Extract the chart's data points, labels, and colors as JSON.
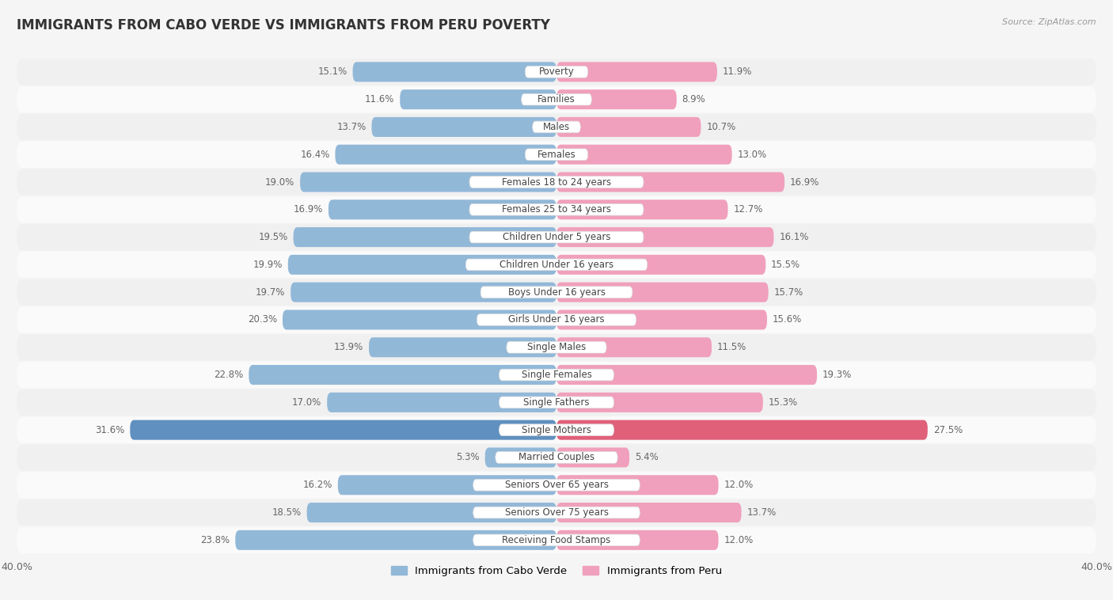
{
  "title": "IMMIGRANTS FROM CABO VERDE VS IMMIGRANTS FROM PERU POVERTY",
  "source": "Source: ZipAtlas.com",
  "categories": [
    "Poverty",
    "Families",
    "Males",
    "Females",
    "Females 18 to 24 years",
    "Females 25 to 34 years",
    "Children Under 5 years",
    "Children Under 16 years",
    "Boys Under 16 years",
    "Girls Under 16 years",
    "Single Males",
    "Single Females",
    "Single Fathers",
    "Single Mothers",
    "Married Couples",
    "Seniors Over 65 years",
    "Seniors Over 75 years",
    "Receiving Food Stamps"
  ],
  "cabo_verde": [
    15.1,
    11.6,
    13.7,
    16.4,
    19.0,
    16.9,
    19.5,
    19.9,
    19.7,
    20.3,
    13.9,
    22.8,
    17.0,
    31.6,
    5.3,
    16.2,
    18.5,
    23.8
  ],
  "peru": [
    11.9,
    8.9,
    10.7,
    13.0,
    16.9,
    12.7,
    16.1,
    15.5,
    15.7,
    15.6,
    11.5,
    19.3,
    15.3,
    27.5,
    5.4,
    12.0,
    13.7,
    12.0
  ],
  "cabo_verde_color": "#92b8d8",
  "peru_color": "#f0a0bc",
  "cabo_verde_highlight_color": "#6090c0",
  "peru_highlight_color": "#e0607a",
  "row_color_even": "#f0f0f0",
  "row_color_odd": "#fafafa",
  "label_bg_color": "#ffffff",
  "axis_max": 40.0,
  "legend_cabo_verde": "Immigrants from Cabo Verde",
  "legend_peru": "Immigrants from Peru",
  "bar_height": 0.72,
  "title_fontsize": 12,
  "label_fontsize": 8.5,
  "value_fontsize": 8.5,
  "background_color": "#f5f5f5"
}
